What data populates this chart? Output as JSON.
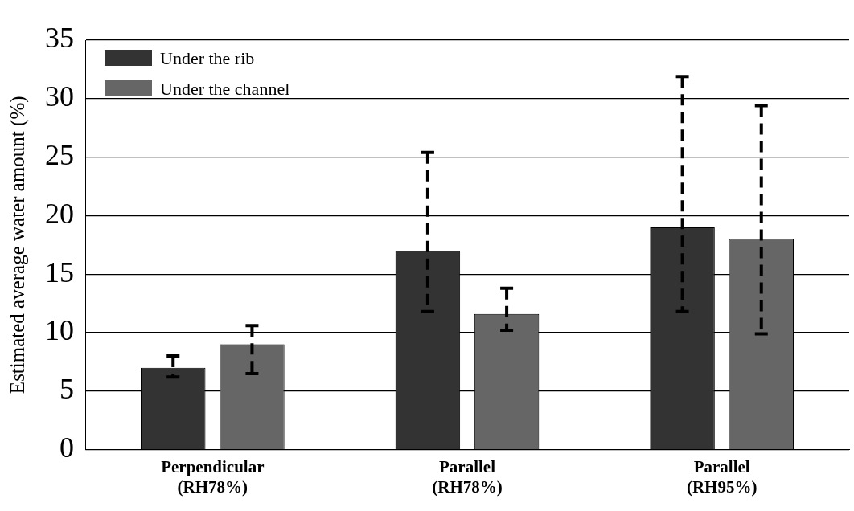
{
  "chart_data": {
    "type": "bar",
    "ylabel": "Estimated average water amount (%)",
    "categories": [
      "Perpendicular\n(RH78%)",
      "Parallel\n(RH78%)",
      "Parallel\n(RH95%)"
    ],
    "series": [
      {
        "name": "Under the rib",
        "color": "#333333",
        "values": [
          7.0,
          17.0,
          19.0
        ],
        "errors": [
          [
            6.2,
            8.0
          ],
          [
            11.8,
            25.4
          ],
          [
            11.8,
            31.9
          ]
        ]
      },
      {
        "name": "Under the channel",
        "color": "#666666",
        "values": [
          9.0,
          11.6,
          18.0
        ],
        "errors": [
          [
            6.5,
            10.6
          ],
          [
            10.2,
            13.8
          ],
          [
            9.9,
            29.4
          ]
        ]
      }
    ],
    "ylim": [
      0,
      35
    ],
    "yticks": [
      0,
      5,
      10,
      15,
      20,
      25,
      30,
      35
    ],
    "grid": "y",
    "legend": "top left",
    "line_style": "dashed"
  }
}
